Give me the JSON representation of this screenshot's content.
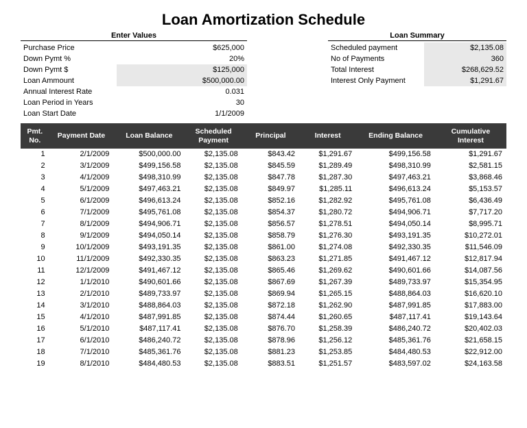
{
  "title": "Loan Amortization Schedule",
  "values_header": "Enter Values",
  "summary_header": "Loan Summary",
  "values": {
    "purchase_price": {
      "label": "Purchase Price",
      "value": "$625,000"
    },
    "down_pct": {
      "label": "Down Pymt %",
      "value": "20%"
    },
    "down_amt": {
      "label": "Down Pymt $",
      "value": "$125,000"
    },
    "loan_amount": {
      "label": "Loan Ammount",
      "value": "$500,000.00"
    },
    "annual_rate": {
      "label": "Annual Interest Rate",
      "value": "0.031"
    },
    "period_years": {
      "label": "Loan Period in Years",
      "value": "30"
    },
    "start_date": {
      "label": "Loan Start Date",
      "value": "1/1/2009"
    }
  },
  "summary": {
    "scheduled_payment": {
      "label": "Scheduled payment",
      "value": "$2,135.08"
    },
    "no_payments": {
      "label": "No of Payments",
      "value": "360"
    },
    "total_interest": {
      "label": "Total Interest",
      "value": "$268,629.52"
    },
    "interest_only": {
      "label": "Interest Only Payment",
      "value": "$1,291.67"
    }
  },
  "columns": {
    "pmt_no": "Pmt. No.",
    "pay_date": "Payment Date",
    "balance": "Loan Balance",
    "scheduled": "Scheduled Payment",
    "principal": "Principal",
    "interest": "Interest",
    "ending": "Ending Balance",
    "cumulative": "Cumulative Interest"
  },
  "rows": [
    {
      "n": "1",
      "date": "2/1/2009",
      "bal": "$500,000.00",
      "sched": "$2,135.08",
      "prin": "$843.42",
      "int": "$1,291.67",
      "end": "$499,156.58",
      "cum": "$1,291.67"
    },
    {
      "n": "2",
      "date": "3/1/2009",
      "bal": "$499,156.58",
      "sched": "$2,135.08",
      "prin": "$845.59",
      "int": "$1,289.49",
      "end": "$498,310.99",
      "cum": "$2,581.15"
    },
    {
      "n": "3",
      "date": "4/1/2009",
      "bal": "$498,310.99",
      "sched": "$2,135.08",
      "prin": "$847.78",
      "int": "$1,287.30",
      "end": "$497,463.21",
      "cum": "$3,868.46"
    },
    {
      "n": "4",
      "date": "5/1/2009",
      "bal": "$497,463.21",
      "sched": "$2,135.08",
      "prin": "$849.97",
      "int": "$1,285.11",
      "end": "$496,613.24",
      "cum": "$5,153.57"
    },
    {
      "n": "5",
      "date": "6/1/2009",
      "bal": "$496,613.24",
      "sched": "$2,135.08",
      "prin": "$852.16",
      "int": "$1,282.92",
      "end": "$495,761.08",
      "cum": "$6,436.49"
    },
    {
      "n": "6",
      "date": "7/1/2009",
      "bal": "$495,761.08",
      "sched": "$2,135.08",
      "prin": "$854.37",
      "int": "$1,280.72",
      "end": "$494,906.71",
      "cum": "$7,717.20"
    },
    {
      "n": "7",
      "date": "8/1/2009",
      "bal": "$494,906.71",
      "sched": "$2,135.08",
      "prin": "$856.57",
      "int": "$1,278.51",
      "end": "$494,050.14",
      "cum": "$8,995.71"
    },
    {
      "n": "8",
      "date": "9/1/2009",
      "bal": "$494,050.14",
      "sched": "$2,135.08",
      "prin": "$858.79",
      "int": "$1,276.30",
      "end": "$493,191.35",
      "cum": "$10,272.01"
    },
    {
      "n": "9",
      "date": "10/1/2009",
      "bal": "$493,191.35",
      "sched": "$2,135.08",
      "prin": "$861.00",
      "int": "$1,274.08",
      "end": "$492,330.35",
      "cum": "$11,546.09"
    },
    {
      "n": "10",
      "date": "11/1/2009",
      "bal": "$492,330.35",
      "sched": "$2,135.08",
      "prin": "$863.23",
      "int": "$1,271.85",
      "end": "$491,467.12",
      "cum": "$12,817.94"
    },
    {
      "n": "11",
      "date": "12/1/2009",
      "bal": "$491,467.12",
      "sched": "$2,135.08",
      "prin": "$865.46",
      "int": "$1,269.62",
      "end": "$490,601.66",
      "cum": "$14,087.56"
    },
    {
      "n": "12",
      "date": "1/1/2010",
      "bal": "$490,601.66",
      "sched": "$2,135.08",
      "prin": "$867.69",
      "int": "$1,267.39",
      "end": "$489,733.97",
      "cum": "$15,354.95"
    },
    {
      "n": "13",
      "date": "2/1/2010",
      "bal": "$489,733.97",
      "sched": "$2,135.08",
      "prin": "$869.94",
      "int": "$1,265.15",
      "end": "$488,864.03",
      "cum": "$16,620.10"
    },
    {
      "n": "14",
      "date": "3/1/2010",
      "bal": "$488,864.03",
      "sched": "$2,135.08",
      "prin": "$872.18",
      "int": "$1,262.90",
      "end": "$487,991.85",
      "cum": "$17,883.00"
    },
    {
      "n": "15",
      "date": "4/1/2010",
      "bal": "$487,991.85",
      "sched": "$2,135.08",
      "prin": "$874.44",
      "int": "$1,260.65",
      "end": "$487,117.41",
      "cum": "$19,143.64"
    },
    {
      "n": "16",
      "date": "5/1/2010",
      "bal": "$487,117.41",
      "sched": "$2,135.08",
      "prin": "$876.70",
      "int": "$1,258.39",
      "end": "$486,240.72",
      "cum": "$20,402.03"
    },
    {
      "n": "17",
      "date": "6/1/2010",
      "bal": "$486,240.72",
      "sched": "$2,135.08",
      "prin": "$878.96",
      "int": "$1,256.12",
      "end": "$485,361.76",
      "cum": "$21,658.15"
    },
    {
      "n": "18",
      "date": "7/1/2010",
      "bal": "$485,361.76",
      "sched": "$2,135.08",
      "prin": "$881.23",
      "int": "$1,253.85",
      "end": "$484,480.53",
      "cum": "$22,912.00"
    },
    {
      "n": "19",
      "date": "8/1/2010",
      "bal": "$484,480.53",
      "sched": "$2,135.08",
      "prin": "$883.51",
      "int": "$1,251.57",
      "end": "$483,597.02",
      "cum": "$24,163.58"
    }
  ]
}
